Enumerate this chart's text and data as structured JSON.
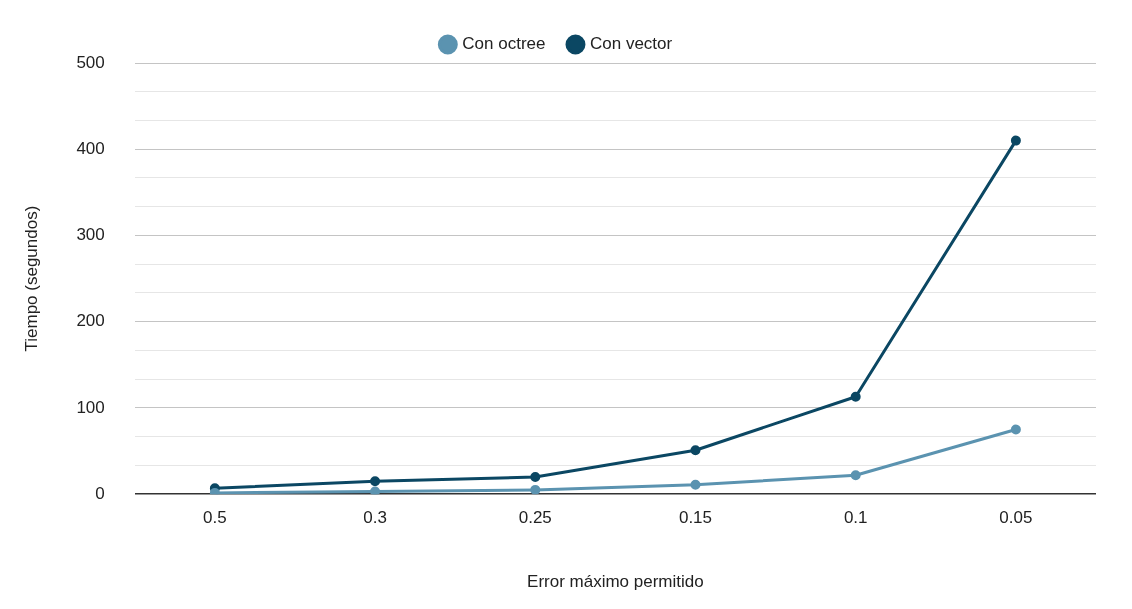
{
  "chart_data": {
    "type": "line",
    "xlabel": "Error máximo permitido",
    "ylabel": "Tiempo (segundos)",
    "categories": [
      "0.5",
      "0.3",
      "0.25",
      "0.15",
      "0.1",
      "0.05"
    ],
    "series": [
      {
        "name": "Con octree",
        "color": "#5b93b0",
        "values": [
          1.5,
          3,
          5,
          11,
          22,
          75
        ]
      },
      {
        "name": "Con vector",
        "color": "#0b4763",
        "values": [
          7,
          15,
          20,
          51,
          113,
          410
        ]
      }
    ],
    "ylim": [
      0,
      500
    ],
    "yticks": [
      0,
      {
        "value": 33.33,
        "label": null
      },
      {
        "value": 66.67,
        "label": null
      },
      100,
      {
        "value": 133.33,
        "label": null
      },
      {
        "value": 166.67,
        "label": null
      },
      200,
      {
        "value": 233.33,
        "label": null
      },
      {
        "value": 266.67,
        "label": null
      },
      300,
      {
        "value": 333.33,
        "label": null
      },
      {
        "value": 366.67,
        "label": null
      },
      400,
      {
        "value": 433.33,
        "label": null
      },
      {
        "value": 466.67,
        "label": null
      },
      500
    ],
    "grid": "y",
    "legend": "top",
    "marker": "circle",
    "line_style": "solid"
  }
}
